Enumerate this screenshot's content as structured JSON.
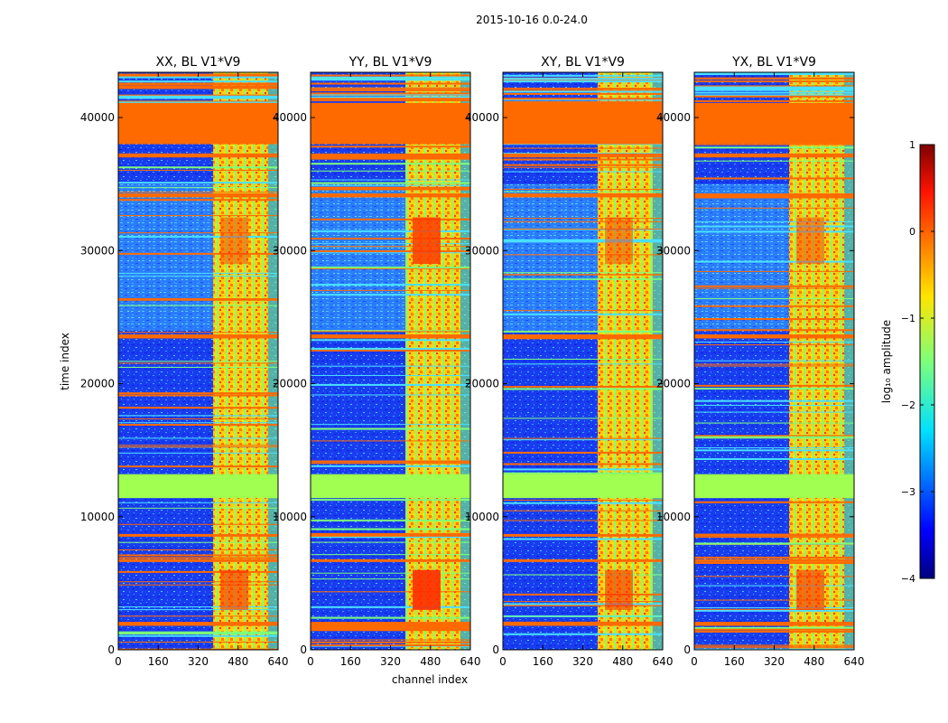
{
  "figure_title": "2015-10-16 0.0-24.0",
  "chart_data": [
    {
      "type": "heatmap",
      "title": "XX, BL V1*V9",
      "xlabel": "channel index",
      "ylabel": "time index",
      "xlim": [
        0,
        640
      ],
      "ylim": [
        0,
        43400
      ],
      "xticks": [
        0,
        160,
        320,
        480,
        640
      ],
      "yticks": [
        0,
        10000,
        20000,
        30000,
        40000
      ],
      "colormap": "jet",
      "clim": [
        -4,
        1
      ]
    },
    {
      "type": "heatmap",
      "title": "YY, BL V1*V9",
      "xlabel": "channel index",
      "ylabel": "time index",
      "xlim": [
        0,
        640
      ],
      "ylim": [
        0,
        43400
      ],
      "xticks": [
        0,
        160,
        320,
        480,
        640
      ],
      "yticks": [
        0,
        10000,
        20000,
        30000,
        40000
      ],
      "colormap": "jet",
      "clim": [
        -4,
        1
      ]
    },
    {
      "type": "heatmap",
      "title": "XY, BL V1*V9",
      "xlabel": "channel index",
      "ylabel": "time index",
      "xlim": [
        0,
        640
      ],
      "ylim": [
        0,
        43400
      ],
      "xticks": [
        0,
        160,
        320,
        480,
        640
      ],
      "yticks": [
        0,
        10000,
        20000,
        30000,
        40000
      ],
      "colormap": "jet",
      "clim": [
        -4,
        1
      ]
    },
    {
      "type": "heatmap",
      "title": "YX, BL V1*V9",
      "xlabel": "channel index",
      "ylabel": "time index",
      "xlim": [
        0,
        640
      ],
      "ylim": [
        0,
        43400
      ],
      "xticks": [
        0,
        160,
        320,
        480,
        640
      ],
      "yticks": [
        0,
        10000,
        20000,
        30000,
        40000
      ],
      "colormap": "jet",
      "clim": [
        -4,
        1
      ]
    }
  ],
  "shared_xlabel": "channel index",
  "shared_ylabel": "time index",
  "colorbar": {
    "label": "log₁₀ amplitude",
    "ticks": [
      1,
      0,
      -1,
      -2,
      -3,
      -4
    ],
    "tick_labels": [
      "1",
      "0",
      "−1",
      "−2",
      "−3",
      "−4"
    ],
    "min": -4,
    "max": 1
  },
  "band_features": {
    "flagged_orange_rows": [
      [
        38000,
        40500
      ],
      [
        37000,
        37300
      ],
      [
        34000,
        34300
      ],
      [
        23400,
        23700
      ],
      [
        1800,
        2100
      ],
      [
        6600,
        6800
      ],
      [
        8500,
        8700
      ]
    ],
    "flagged_green_rows": [
      [
        11400,
        13200
      ]
    ],
    "rfi_channel_range": [
      380,
      600
    ]
  }
}
